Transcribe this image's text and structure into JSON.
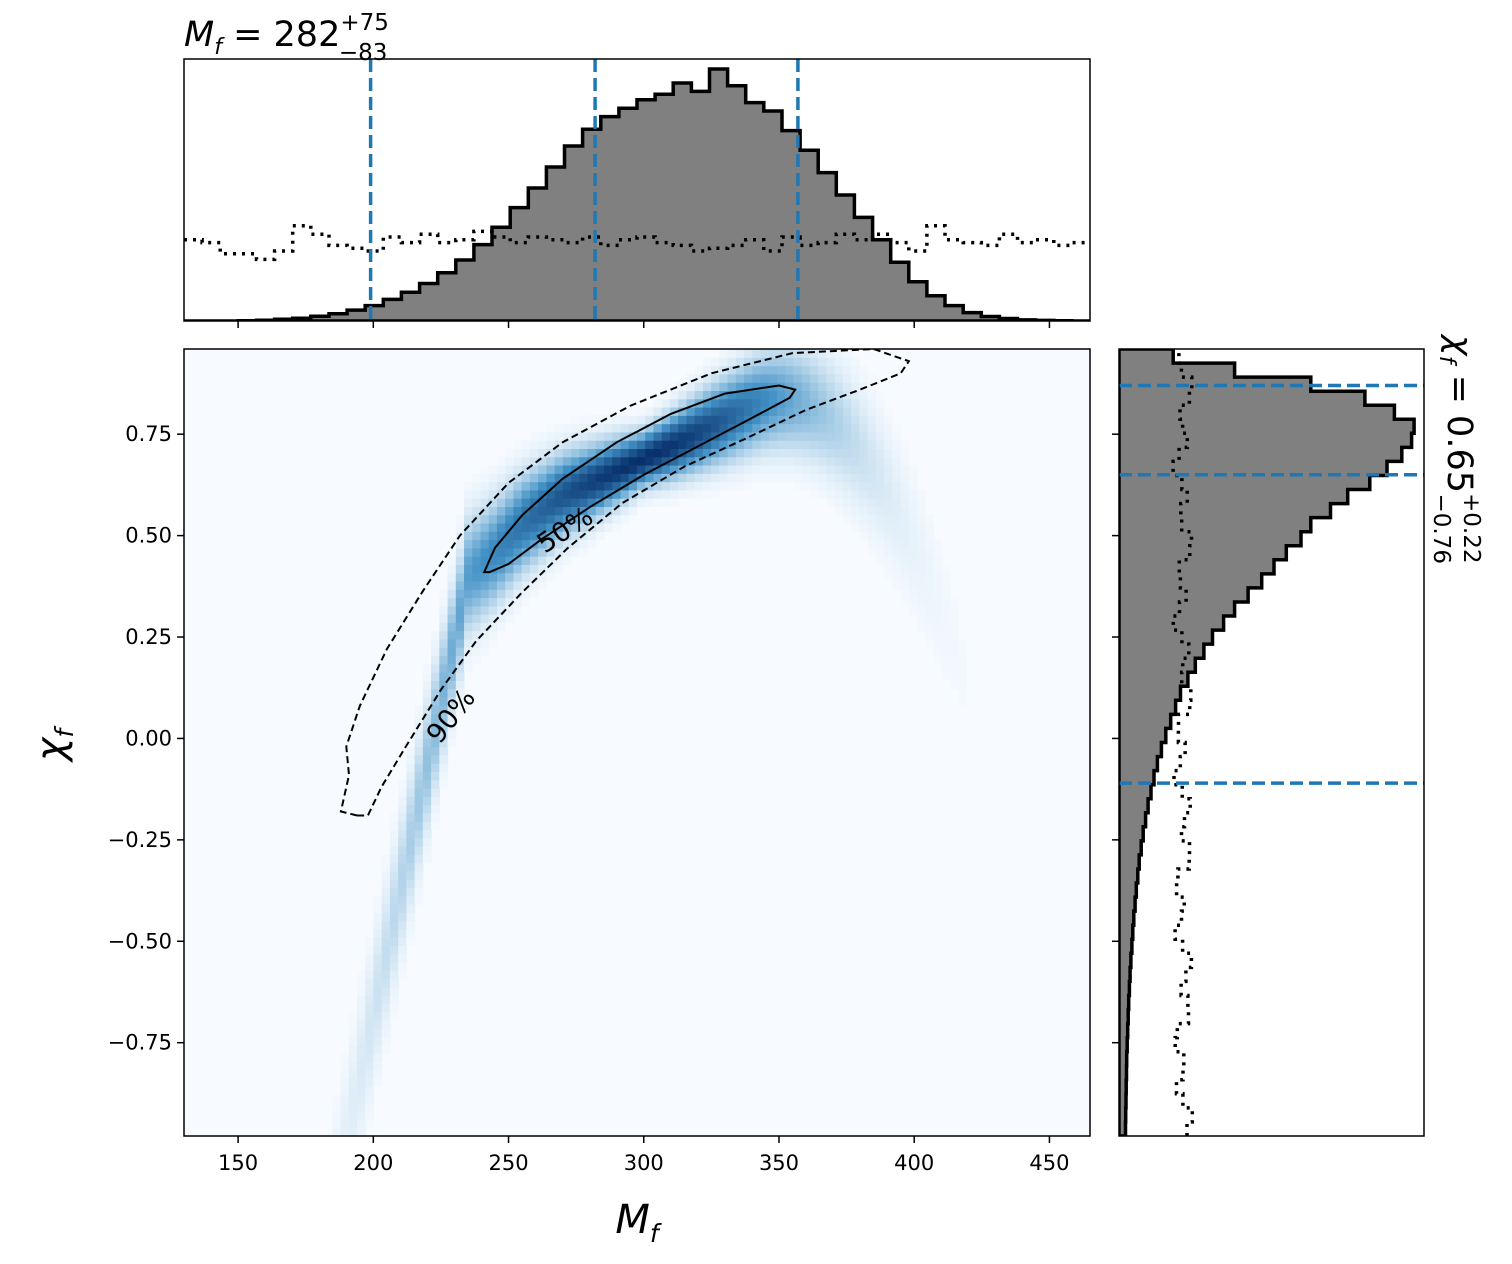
{
  "chart_data": {
    "type": "joint-density",
    "colors": {
      "density": "#08519c",
      "histogram_fill": "#808080",
      "quantile_line": "#1f77b4",
      "contour": "#000000"
    },
    "top_title": {
      "symbol": "M",
      "sub": "f",
      "eq": " = ",
      "value": "282",
      "plus": "+75",
      "minus": "−83"
    },
    "right_title": {
      "symbol": "χ",
      "sub": "f",
      "eq": " = ",
      "value": "0.65",
      "plus": "+0.22",
      "minus": "−0.76"
    },
    "xlabel": {
      "symbol": "M",
      "sub": "f"
    },
    "ylabel": {
      "symbol": "χ",
      "sub": "f"
    },
    "xlim": [
      130,
      465
    ],
    "ylim": [
      -0.98,
      0.96
    ],
    "xticks": [
      "150",
      "200",
      "250",
      "300",
      "350",
      "400",
      "450"
    ],
    "yticks": [
      "−0.75",
      "−0.50",
      "−0.25",
      "0.00",
      "0.25",
      "0.50",
      "0.75"
    ],
    "contour_labels": [
      "50%",
      "90%"
    ],
    "m_quantiles": [
      199,
      282,
      357
    ],
    "chi_quantiles": [
      -0.11,
      0.65,
      0.87
    ],
    "m_hist_bins": [
      130,
      465,
      50
    ],
    "m_hist": [
      0,
      0,
      0,
      0.1,
      0.3,
      0.6,
      1.0,
      1.7,
      2.6,
      3.9,
      5.5,
      7.7,
      10.3,
      13.4,
      17.2,
      21.8,
      27.3,
      33.5,
      40.5,
      47.5,
      55.0,
      62.5,
      68.5,
      73.0,
      76.0,
      79.0,
      81.0,
      85.0,
      82.0,
      90.0,
      84.0,
      78.0,
      75.0,
      68.0,
      61.0,
      53.0,
      45.0,
      37.0,
      29.0,
      21.0,
      14.0,
      9.0,
      5.5,
      3.0,
      1.6,
      0.9,
      0.4,
      0.2,
      0.1,
      0
    ],
    "m_prior": [
      29,
      28,
      24,
      24,
      22,
      25,
      34,
      31,
      27,
      26,
      25,
      30,
      28,
      31,
      28,
      29,
      32,
      30,
      28,
      30,
      29,
      28,
      30,
      27,
      29,
      30,
      28,
      27,
      25,
      26,
      27,
      29,
      25,
      30,
      27,
      28,
      31,
      29,
      31,
      28,
      25,
      34,
      29,
      28,
      27,
      31,
      28,
      29,
      27,
      28
    ],
    "chi_hist_bins": [
      -0.98,
      0.96,
      56
    ],
    "chi_hist": [
      0.6,
      0.7,
      0.8,
      0.9,
      1.0,
      1.1,
      1.3,
      1.5,
      1.7,
      1.9,
      2.2,
      2.5,
      2.8,
      3.2,
      3.6,
      4.0,
      4.5,
      5.0,
      5.6,
      6.2,
      7.0,
      7.8,
      8.8,
      9.8,
      11.0,
      12.2,
      13.6,
      15.2,
      17.0,
      19.0,
      21.0,
      23.0,
      26.0,
      29.0,
      32.5,
      36.0,
      40.5,
      45.0,
      50.5,
      56.0,
      61.0,
      66.0,
      72.0,
      76.0,
      84.0,
      91.0,
      100.0,
      107.0,
      113.0,
      117.0,
      118.0,
      110.0,
      98.0,
      76.0,
      45.0,
      20.0
    ]
  }
}
